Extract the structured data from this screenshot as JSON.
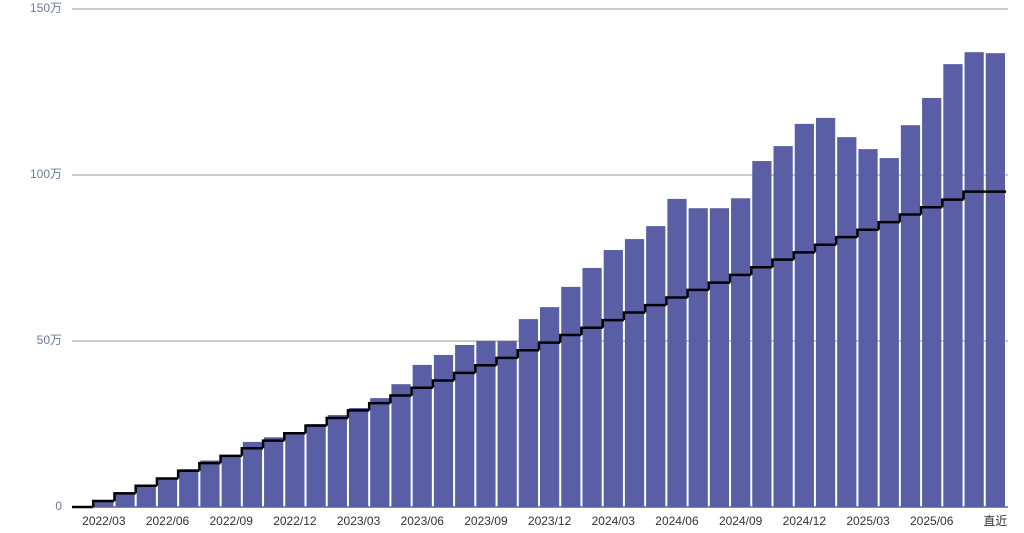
{
  "chart_data": {
    "type": "bar",
    "categories": [
      null,
      "2022/03",
      null,
      null,
      "2022/06",
      null,
      null,
      "2022/09",
      null,
      null,
      "2022/12",
      null,
      null,
      "2023/03",
      null,
      null,
      "2023/06",
      null,
      null,
      "2023/09",
      null,
      null,
      "2023/12",
      null,
      null,
      "2024/03",
      null,
      null,
      "2024/06",
      null,
      null,
      "2024/09",
      null,
      null,
      "2024/12",
      null,
      null,
      "2025/03",
      null,
      null,
      "2025/06",
      null,
      null,
      "直近"
    ],
    "series": [
      {
        "type": "bar",
        "color": "#5a5fa5",
        "values": [
          0.3,
          2,
          4.5,
          6.6,
          8.7,
          11.4,
          14,
          15.5,
          19.6,
          21,
          22,
          25,
          27.7,
          29.8,
          32.8,
          37,
          42.8,
          45.8,
          48.8,
          50,
          50,
          56.6,
          60.2,
          66.3,
          72,
          77.4,
          80.7,
          84.6,
          92.8,
          90,
          90,
          93,
          104.2,
          108.7,
          115.4,
          117.2,
          111.4,
          107.8,
          105.1,
          115,
          123.2,
          133.4,
          137,
          136.7
        ]
      },
      {
        "type": "step",
        "color": "#000000",
        "values": [
          0,
          1.8,
          4.1,
          6.4,
          8.6,
          10.9,
          13.2,
          15.4,
          17.7,
          20.0,
          22.2,
          24.5,
          26.8,
          29.1,
          31.3,
          33.6,
          35.9,
          38.1,
          40.4,
          42.7,
          44.9,
          47.2,
          49.5,
          51.8,
          54.0,
          56.3,
          58.6,
          60.8,
          63.1,
          65.4,
          67.6,
          69.9,
          72.2,
          74.5,
          76.7,
          79.0,
          81.3,
          83.5,
          85.8,
          88.1,
          90.3,
          92.6,
          95,
          95
        ]
      }
    ],
    "ylim": [
      0,
      150
    ],
    "yticks": [
      0,
      {
        "value": 50,
        "label": "50万"
      },
      {
        "value": 100,
        "label": "100万"
      },
      {
        "value": 150,
        "label": "150万"
      }
    ],
    "grid": true
  }
}
